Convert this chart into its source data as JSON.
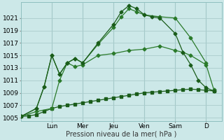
{
  "bg_color": "#cce8e8",
  "grid_color": "#aacccc",
  "line_color1": "#1a5c1a",
  "line_color2": "#2a7a2a",
  "ylabel": "Pression niveau de la mer( hPa )",
  "ylim": [
    1004.5,
    1023.5
  ],
  "yticks": [
    1005,
    1007,
    1009,
    1011,
    1013,
    1015,
    1017,
    1019,
    1021
  ],
  "day_labels": [
    "Lun",
    "Mer",
    "Jeu",
    "Ven",
    "Sam",
    "D"
  ],
  "day_positions": [
    2.0,
    4.0,
    6.0,
    8.0,
    10.0,
    12.0
  ],
  "xlim": [
    0,
    13
  ],
  "series_flat_x": [
    0,
    0.5,
    1.0,
    1.5,
    2.0,
    2.5,
    3.0,
    3.5,
    4.0,
    4.5,
    5.0,
    5.5,
    6.0,
    6.5,
    7.0,
    7.5,
    8.0,
    8.5,
    9.0,
    9.5,
    10.0,
    10.5,
    11.0,
    11.5,
    12.0,
    12.5
  ],
  "series_flat_y": [
    1005.2,
    1005.3,
    1005.5,
    1006.0,
    1006.5,
    1006.8,
    1007.0,
    1007.2,
    1007.4,
    1007.6,
    1007.8,
    1008.0,
    1008.2,
    1008.4,
    1008.6,
    1008.8,
    1009.0,
    1009.1,
    1009.2,
    1009.3,
    1009.4,
    1009.5,
    1009.6,
    1009.5,
    1009.4,
    1009.3
  ],
  "series_mid_x": [
    0,
    1.0,
    2.0,
    2.5,
    3.0,
    3.5,
    4.0,
    5.0,
    6.0,
    7.0,
    8.0,
    9.0,
    10.0,
    10.5,
    11.0,
    12.0,
    12.5
  ],
  "series_mid_y": [
    1005.2,
    1006.0,
    1006.5,
    1011.0,
    1013.8,
    1013.2,
    1013.5,
    1015.0,
    1015.3,
    1015.8,
    1016.0,
    1016.5,
    1015.8,
    1015.5,
    1015.0,
    1013.5,
    1009.5
  ],
  "series_high1_x": [
    0,
    1.0,
    1.5,
    2.0,
    2.5,
    3.0,
    3.5,
    4.0,
    5.0,
    6.0,
    6.5,
    7.0,
    7.5,
    8.0,
    9.0,
    10.0,
    11.0,
    12.0
  ],
  "series_high1_y": [
    1005.2,
    1006.5,
    1010.0,
    1015.0,
    1012.0,
    1013.8,
    1014.5,
    1013.8,
    1016.8,
    1019.5,
    1021.2,
    1022.5,
    1022.0,
    1021.5,
    1021.2,
    1021.0,
    1017.8,
    1013.8
  ],
  "series_high2_x": [
    0,
    1.0,
    1.5,
    2.0,
    2.5,
    3.0,
    3.5,
    4.0,
    5.0,
    6.0,
    6.5,
    7.0,
    7.5,
    8.0,
    8.5,
    9.0,
    10.0,
    10.5,
    11.0,
    11.5,
    12.0,
    12.5
  ],
  "series_high2_y": [
    1005.2,
    1006.5,
    1010.0,
    1015.0,
    1012.0,
    1013.8,
    1014.5,
    1013.8,
    1017.0,
    1020.0,
    1022.0,
    1023.0,
    1022.5,
    1021.5,
    1021.2,
    1021.0,
    1018.5,
    1015.5,
    1013.5,
    1011.0,
    1009.8,
    1009.3
  ]
}
